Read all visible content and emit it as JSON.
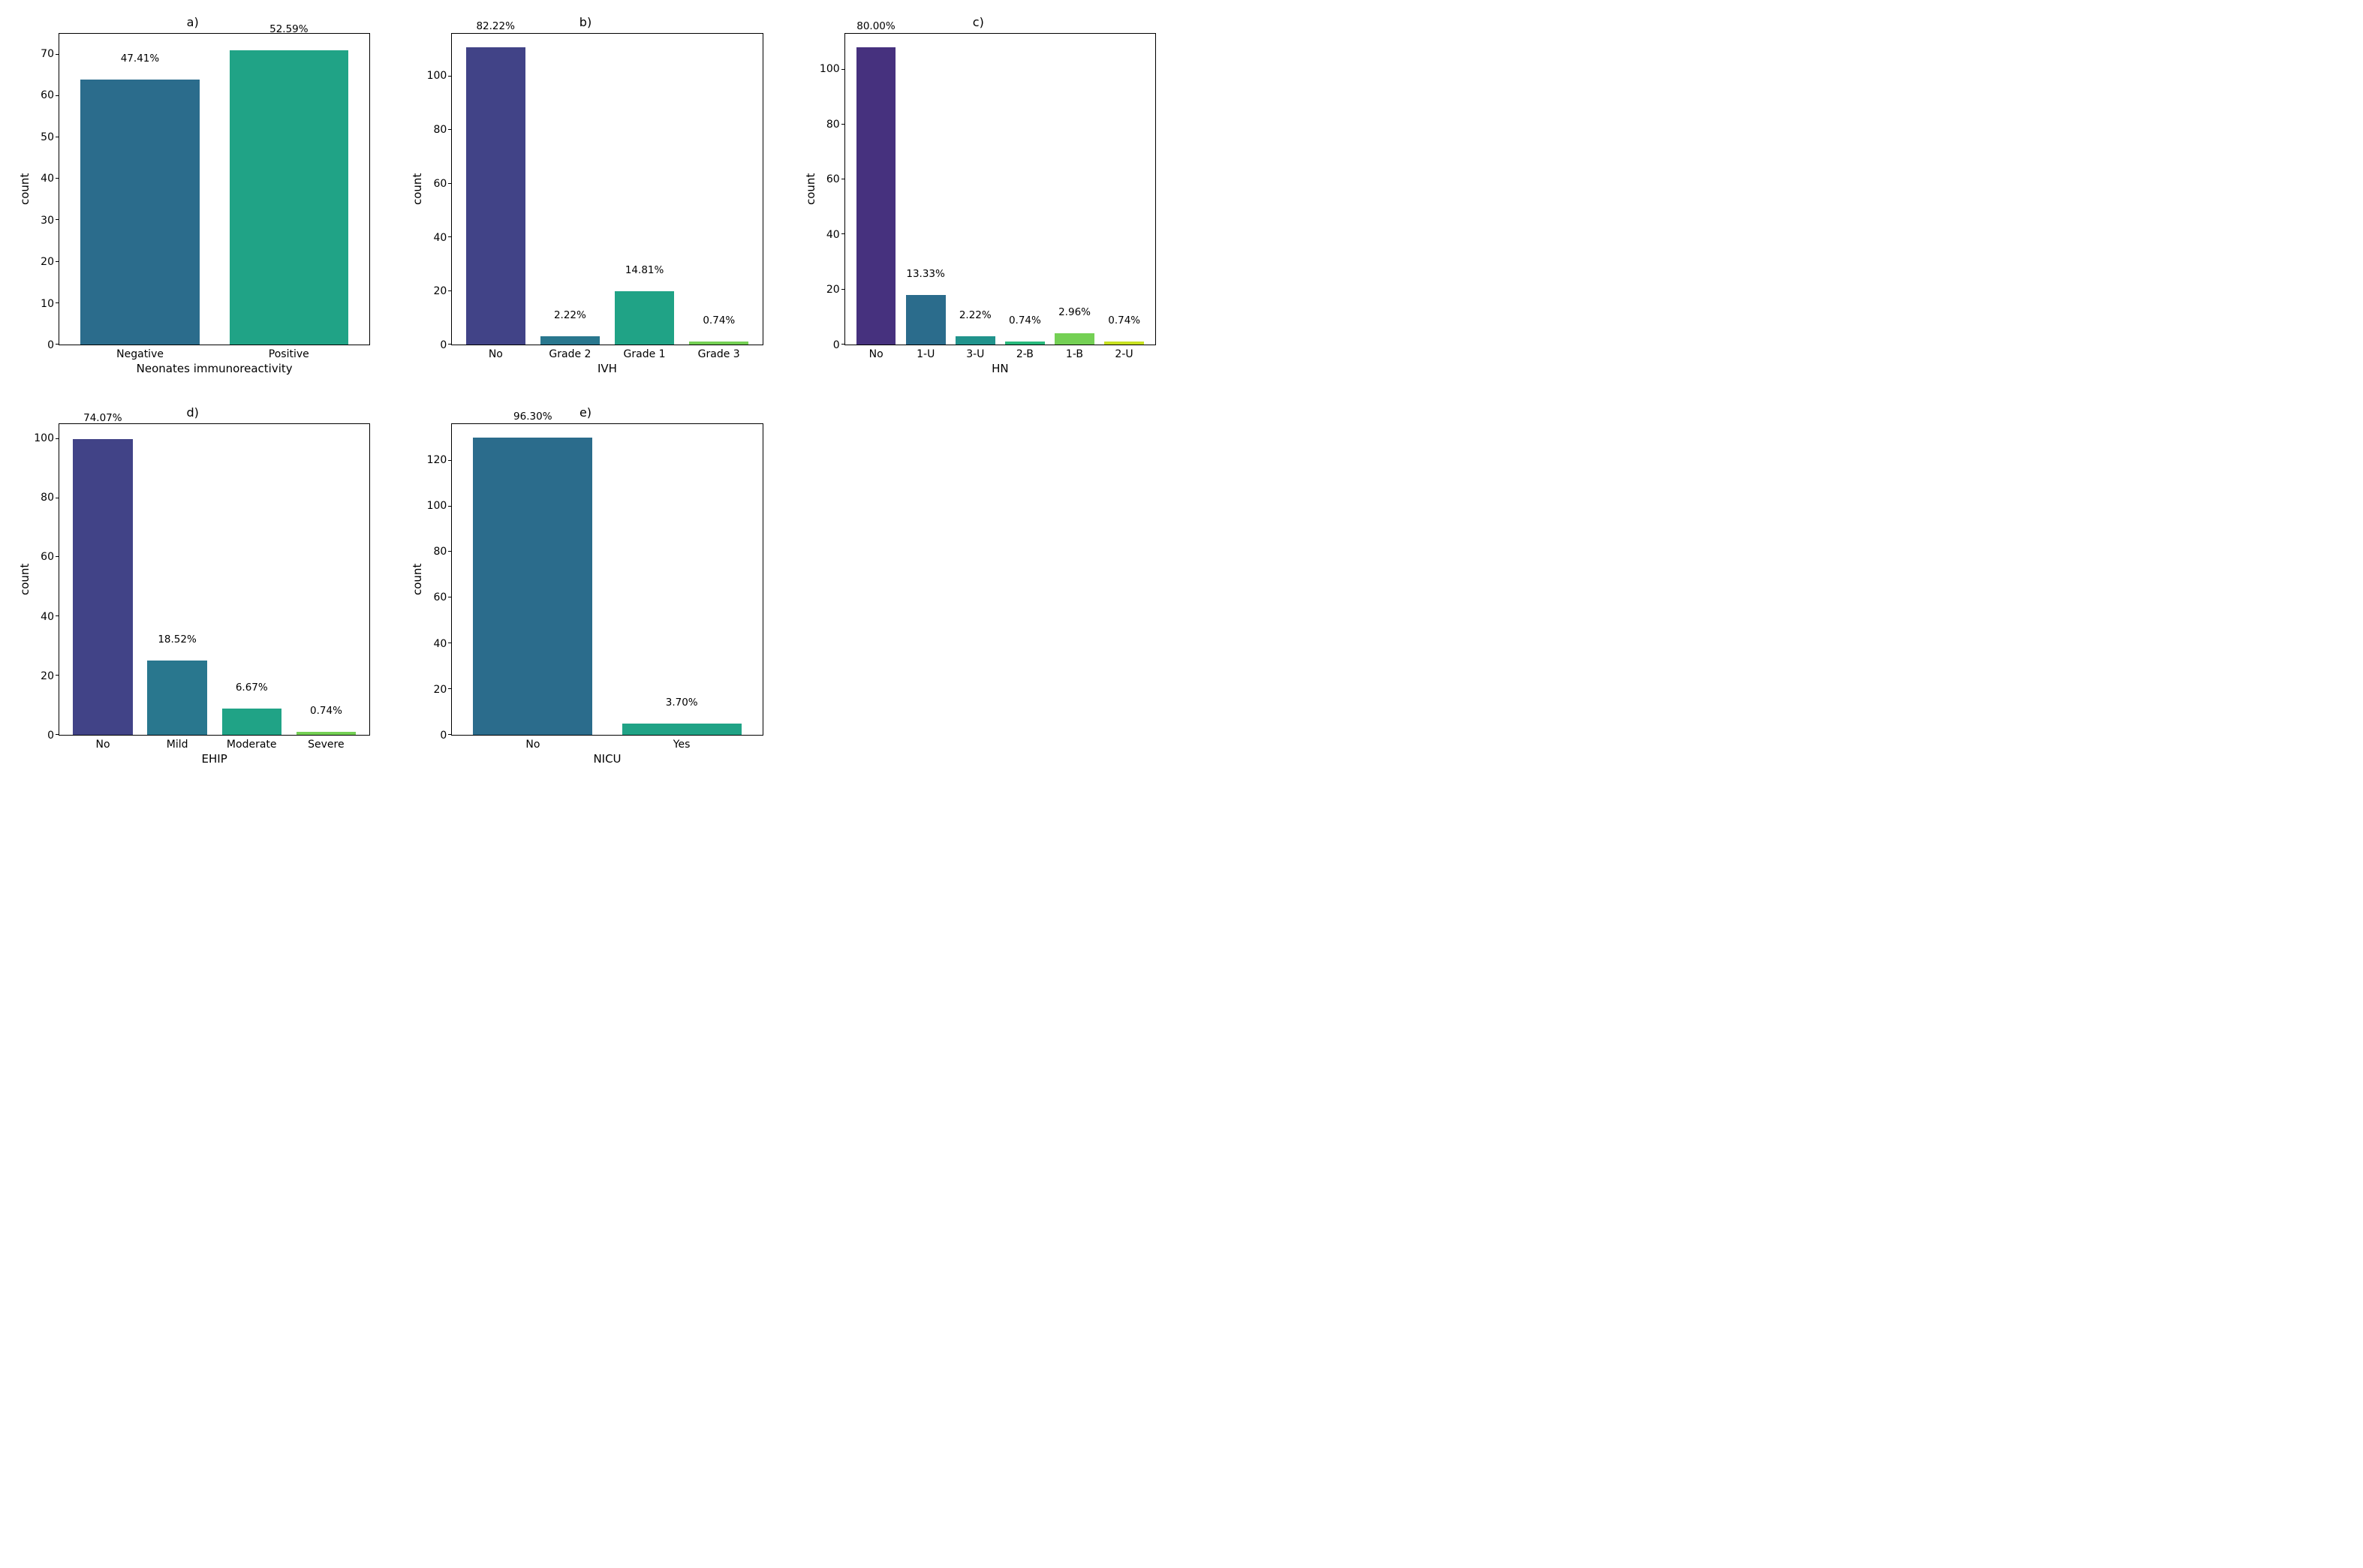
{
  "background_color": "#ffffff",
  "border_color": "#000000",
  "text_color": "#000000",
  "title_fontsize": 16,
  "label_fontsize": 15,
  "tick_fontsize": 14,
  "barlabel_fontsize": 13.5,
  "panels": [
    {
      "key": "a",
      "title": "a)",
      "ylabel": "count",
      "xlabel": "Neonates immunoreactivity",
      "ylim": [
        0,
        75
      ],
      "yticks": [
        0,
        10,
        20,
        30,
        40,
        50,
        60,
        70
      ],
      "bar_width_pct": 80,
      "categories": [
        "Negative",
        "Positive"
      ],
      "values": [
        64,
        71
      ],
      "value_labels": [
        "47.41%",
        "52.59%"
      ],
      "bar_colors": [
        "#2b6c8c",
        "#20a386"
      ]
    },
    {
      "key": "b",
      "title": "b)",
      "ylabel": "count",
      "xlabel": "IVH",
      "ylim": [
        0,
        116
      ],
      "yticks": [
        0,
        20,
        40,
        60,
        80,
        100
      ],
      "bar_width_pct": 80,
      "categories": [
        "No",
        "Grade 2",
        "Grade 1",
        "Grade 3"
      ],
      "values": [
        111,
        3,
        20,
        1
      ],
      "value_labels": [
        "82.22%",
        "2.22%",
        "14.81%",
        "0.74%"
      ],
      "bar_colors": [
        "#414387",
        "#29778e",
        "#20a386",
        "#74d054"
      ]
    },
    {
      "key": "c",
      "title": "c)",
      "ylabel": "count",
      "xlabel": "HN",
      "ylim": [
        0,
        113
      ],
      "yticks": [
        0,
        20,
        40,
        60,
        80,
        100
      ],
      "bar_width_pct": 80,
      "categories": [
        "No",
        "1-U",
        "3-U",
        "2-B",
        "1-B",
        "2-U"
      ],
      "values": [
        108,
        18,
        3,
        1,
        4,
        1
      ],
      "value_labels": [
        "80.00%",
        "13.33%",
        "2.22%",
        "0.74%",
        "2.96%",
        "0.74%"
      ],
      "bar_colors": [
        "#46317e",
        "#2b6c8c",
        "#20938c",
        "#28b97c",
        "#74d054",
        "#c7e120"
      ]
    },
    {
      "key": "d",
      "title": "d)",
      "ylabel": "count",
      "xlabel": "EHIP",
      "ylim": [
        0,
        105
      ],
      "yticks": [
        0,
        20,
        40,
        60,
        80,
        100
      ],
      "bar_width_pct": 80,
      "categories": [
        "No",
        "Mild",
        "Moderate",
        "Severe"
      ],
      "values": [
        100,
        25,
        9,
        1
      ],
      "value_labels": [
        "74.07%",
        "18.52%",
        "6.67%",
        "0.74%"
      ],
      "bar_colors": [
        "#414387",
        "#29778e",
        "#20a386",
        "#74d054"
      ]
    },
    {
      "key": "e",
      "title": "e)",
      "ylabel": "count",
      "xlabel": "NICU",
      "ylim": [
        0,
        136
      ],
      "yticks": [
        0,
        20,
        40,
        60,
        80,
        100,
        120
      ],
      "bar_width_pct": 80,
      "categories": [
        "No",
        "Yes"
      ],
      "values": [
        130,
        5
      ],
      "value_labels": [
        "96.30%",
        "3.70%"
      ],
      "bar_colors": [
        "#2b6c8c",
        "#20a386"
      ]
    }
  ]
}
